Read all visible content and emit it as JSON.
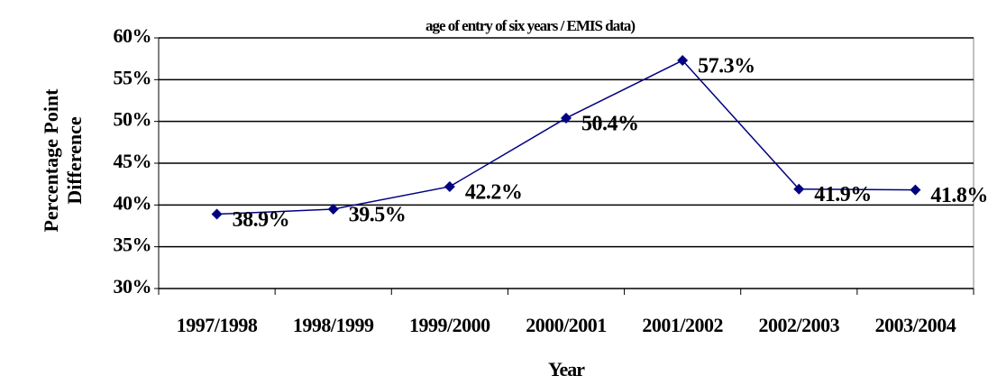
{
  "chart_data": {
    "type": "line",
    "title": "age of entry of six years / EMIS data)",
    "xlabel": "Year",
    "ylabel": "Percentage Point Difference",
    "categories": [
      "1997/1998",
      "1998/1999",
      "1999/2000",
      "2000/2001",
      "2001/2002",
      "2002/2003",
      "2003/2004"
    ],
    "values": [
      38.9,
      39.5,
      42.2,
      50.4,
      57.3,
      41.9,
      41.8
    ],
    "value_labels": [
      "38.9%",
      "39.5%",
      "42.2%",
      "50.4%",
      "57.3%",
      "41.9%",
      "41.8%"
    ],
    "color": "#000080",
    "ylim": [
      30,
      60
    ],
    "yticks": [
      {
        "value": 30,
        "label": "30%"
      },
      {
        "value": 35,
        "label": "35%"
      },
      {
        "value": 40,
        "label": "40%"
      },
      {
        "value": 45,
        "label": "45%"
      },
      {
        "value": 50,
        "label": "50%"
      },
      {
        "value": 55,
        "label": "55%"
      },
      {
        "value": 60,
        "label": "60%"
      }
    ],
    "grid": true
  }
}
